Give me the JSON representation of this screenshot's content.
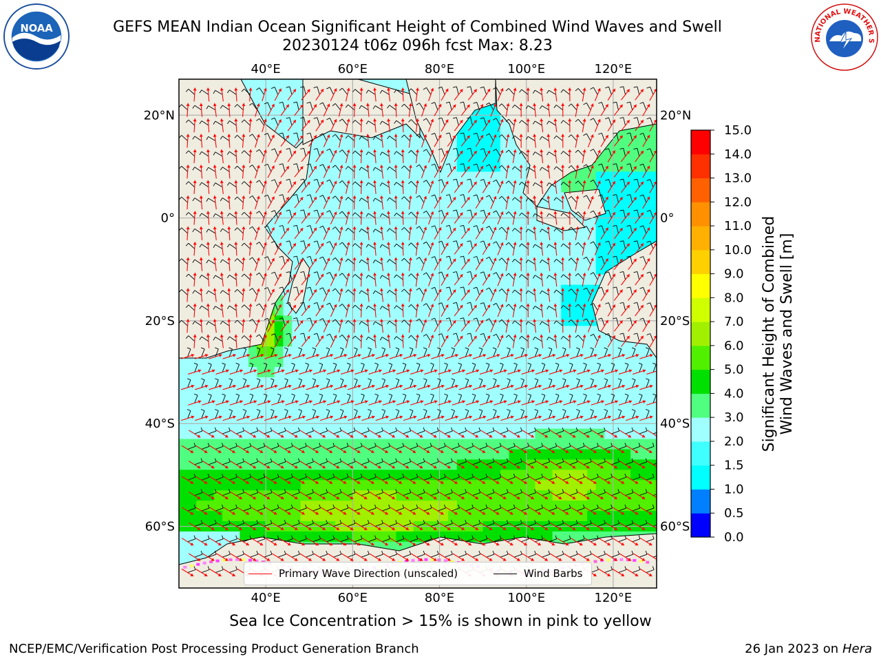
{
  "header": {
    "title_line1": "GEFS MEAN Indian Ocean Significant Height of Combined Wind Waves and Swell",
    "title_line2": "20230124 t06z 096h fcst   Max: 8.23"
  },
  "logos": {
    "left": "noaa-logo",
    "right": "national-weather-service-logo",
    "left_text": "NOAA",
    "right_text": "NATIONAL WEATHER SERVICE"
  },
  "chart_data": {
    "type": "heatmap",
    "variable": "Significant Height of Combined Wind Waves and Swell [m]",
    "lon_range": [
      20,
      130
    ],
    "lat_range": [
      -72,
      27
    ],
    "lon_ticks": [
      "40°E",
      "60°E",
      "80°E",
      "100°E",
      "120°E"
    ],
    "lon_tick_values": [
      40,
      60,
      80,
      100,
      120
    ],
    "lat_ticks": [
      "20°N",
      "0°",
      "20°S",
      "40°S",
      "60°S"
    ],
    "lat_tick_values": [
      20,
      0,
      -20,
      -40,
      -60
    ],
    "grid": true,
    "max": 8.23,
    "colorbar": {
      "label": "Significant Height of Combined Wind Waves and Swell [m]",
      "label_line1": "Significant Height of Combined",
      "label_line2": "Wind Waves and Swell [m]",
      "boundaries": [
        0.0,
        0.5,
        1.0,
        1.5,
        2.0,
        3.0,
        4.0,
        5.0,
        6.0,
        7.0,
        8.0,
        9.0,
        10.0,
        11.0,
        12.0,
        13.0,
        14.0,
        15.0
      ],
      "tick_labels": [
        "0.0",
        "0.5",
        "1.0",
        "1.5",
        "2.0",
        "3.0",
        "4.0",
        "5.0",
        "6.0",
        "7.0",
        "8.0",
        "9.0",
        "10.0",
        "11.0",
        "12.0",
        "13.0",
        "14.0",
        "15.0"
      ],
      "colors": [
        "#0000ff",
        "#0080ff",
        "#00ffff",
        "#40ffff",
        "#a0ffff",
        "#50ff80",
        "#00e000",
        "#50f000",
        "#a0f000",
        "#d0ff00",
        "#ffff00",
        "#ffd000",
        "#ffb000",
        "#ff9000",
        "#ff6000",
        "#ff3000",
        "#ff0000"
      ]
    },
    "legend": {
      "placement": "bottom-center",
      "entries": [
        {
          "label": "Primary Wave Direction (unscaled)",
          "color": "#ff0000"
        },
        {
          "label": "Wind Barbs",
          "color": "#000000"
        }
      ]
    }
  },
  "caption": "Sea Ice Concentration > 15% is shown in pink to yellow",
  "footer": {
    "left": "NCEP/EMC/Verification Post Processing Product Generation Branch",
    "right_prefix": "26 Jan 2023 on ",
    "right_host": "Hera"
  }
}
